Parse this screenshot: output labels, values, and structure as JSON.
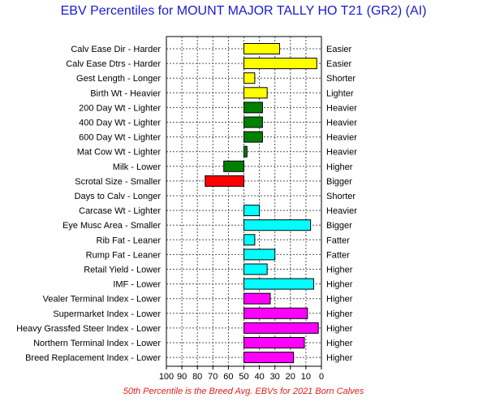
{
  "chart_data": {
    "type": "bar",
    "orientation": "horizontal",
    "title": "EBV Percentiles for MOUNT MAJOR TALLY HO T21 (GR2) (AI)",
    "footnote": "50th Percentile is the Breed Avg. EBVs for 2021 Born Calves",
    "x_axis": {
      "range": [
        100,
        0
      ],
      "reversed": true,
      "ticks": [
        100,
        90,
        80,
        70,
        60,
        50,
        40,
        30,
        20,
        10,
        0
      ],
      "baseline": 50
    },
    "grid": true,
    "traits": [
      {
        "left_label": "Calv Ease Dir - Harder",
        "right_label": "Easier",
        "value": 27,
        "color": "#ffff00"
      },
      {
        "left_label": "Calv Ease Dtrs - Harder",
        "right_label": "Easier",
        "value": 3,
        "color": "#ffff00"
      },
      {
        "left_label": "Gest Length - Longer",
        "right_label": "Shorter",
        "value": 43,
        "color": "#ffff00"
      },
      {
        "left_label": "Birth Wt - Heavier",
        "right_label": "Lighter",
        "value": 35,
        "color": "#ffff00"
      },
      {
        "left_label": "200 Day Wt - Lighter",
        "right_label": "Heavier",
        "value": 38,
        "color": "#008000"
      },
      {
        "left_label": "400 Day Wt - Lighter",
        "right_label": "Heavier",
        "value": 38,
        "color": "#008000"
      },
      {
        "left_label": "600 Day Wt - Lighter",
        "right_label": "Heavier",
        "value": 38,
        "color": "#008000"
      },
      {
        "left_label": "Mat Cow Wt - Lighter",
        "right_label": "Heavier",
        "value": 48,
        "color": "#008000"
      },
      {
        "left_label": "Milk - Lower",
        "right_label": "Higher",
        "value": 63,
        "color": "#008000"
      },
      {
        "left_label": "Scrotal Size - Smaller",
        "right_label": "Bigger",
        "value": 75,
        "color": "#ff0000"
      },
      {
        "left_label": "Days to Calv - Longer",
        "right_label": "Shorter",
        "value": null,
        "color": "#ff0000"
      },
      {
        "left_label": "Carcase Wt - Lighter",
        "right_label": "Heavier",
        "value": 40,
        "color": "#00ffff"
      },
      {
        "left_label": "Eye Musc Area - Smaller",
        "right_label": "Bigger",
        "value": 7,
        "color": "#00ffff"
      },
      {
        "left_label": "Rib Fat - Leaner",
        "right_label": "Fatter",
        "value": 43,
        "color": "#00ffff"
      },
      {
        "left_label": "Rump Fat - Leaner",
        "right_label": "Fatter",
        "value": 30,
        "color": "#00ffff"
      },
      {
        "left_label": "Retail Yield - Lower",
        "right_label": "Higher",
        "value": 35,
        "color": "#00ffff"
      },
      {
        "left_label": "IMF - Lower",
        "right_label": "Higher",
        "value": 5,
        "color": "#00ffff"
      },
      {
        "left_label": "Vealer Terminal Index - Lower",
        "right_label": "Higher",
        "value": 33,
        "color": "#ff00ff"
      },
      {
        "left_label": "Supermarket Index - Lower",
        "right_label": "Higher",
        "value": 9,
        "color": "#ff00ff"
      },
      {
        "left_label": "Heavy Grassfed Steer Index - Lower",
        "right_label": "Higher",
        "value": 2,
        "color": "#ff00ff"
      },
      {
        "left_label": "Northern Terminal Index - Lower",
        "right_label": "Higher",
        "value": 11,
        "color": "#ff00ff"
      },
      {
        "left_label": "Breed Replacement Index - Lower",
        "right_label": "Higher",
        "value": 18,
        "color": "#ff00ff"
      }
    ]
  }
}
